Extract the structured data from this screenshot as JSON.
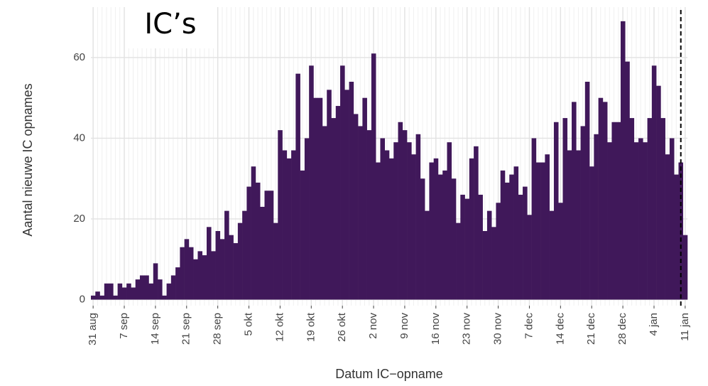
{
  "chart_data": {
    "type": "bar",
    "title": "IC’s",
    "y_label": "Aantal nieuwe IC opnames",
    "x_label": "Datum IC−opname",
    "color": "#40185a",
    "grid": true,
    "ylim": [
      -1.5,
      72.5
    ],
    "yticks": [
      0,
      20,
      40,
      60
    ],
    "categories": [
      "31 aug",
      null,
      null,
      null,
      null,
      null,
      null,
      "7 sep",
      null,
      null,
      null,
      null,
      null,
      null,
      "14 sep",
      null,
      null,
      null,
      null,
      null,
      null,
      "21 sep",
      null,
      null,
      null,
      null,
      null,
      null,
      "28 sep",
      null,
      null,
      null,
      null,
      null,
      null,
      "5 okt",
      null,
      null,
      null,
      null,
      null,
      null,
      "12 okt",
      null,
      null,
      null,
      null,
      null,
      null,
      "19 okt",
      null,
      null,
      null,
      null,
      null,
      null,
      "26 okt",
      null,
      null,
      null,
      null,
      null,
      null,
      "2 nov",
      null,
      null,
      null,
      null,
      null,
      null,
      "9 nov",
      null,
      null,
      null,
      null,
      null,
      null,
      "16 nov",
      null,
      null,
      null,
      null,
      null,
      null,
      "23 nov",
      null,
      null,
      null,
      null,
      null,
      null,
      "30 nov",
      null,
      null,
      null,
      null,
      null,
      null,
      "7 dec",
      null,
      null,
      null,
      null,
      null,
      null,
      "14 dec",
      null,
      null,
      null,
      null,
      null,
      null,
      "21 dec",
      null,
      null,
      null,
      null,
      null,
      null,
      "28 dec",
      null,
      null,
      null,
      null,
      null,
      null,
      "4 jan",
      null,
      null,
      null,
      null,
      null,
      null,
      "11 jan"
    ],
    "values": [
      1,
      2,
      1,
      4,
      4,
      1,
      4,
      3,
      4,
      3,
      5,
      6,
      6,
      4,
      9,
      5,
      1,
      4,
      6,
      8,
      13,
      15,
      13,
      10,
      12,
      11,
      18,
      12,
      17,
      15,
      22,
      16,
      14,
      19,
      22,
      28,
      33,
      29,
      23,
      27,
      27,
      19,
      42,
      37,
      35,
      37,
      56,
      32,
      40,
      58,
      50,
      50,
      43,
      52,
      45,
      48,
      58,
      52,
      54,
      46,
      43,
      50,
      42,
      61,
      34,
      40,
      37,
      35,
      39,
      44,
      42,
      39,
      36,
      41,
      30,
      22,
      34,
      35,
      31,
      32,
      39,
      30,
      19,
      26,
      25,
      35,
      38,
      26,
      17,
      22,
      18,
      24,
      32,
      29,
      31,
      33,
      26,
      28,
      21,
      40,
      34,
      34,
      36,
      22,
      44,
      24,
      45,
      37,
      49,
      37,
      43,
      54,
      33,
      41,
      50,
      49,
      39,
      44,
      44,
      69,
      59,
      45,
      39,
      40,
      39,
      45,
      58,
      53,
      45,
      36,
      40,
      31,
      34,
      16
    ]
  }
}
